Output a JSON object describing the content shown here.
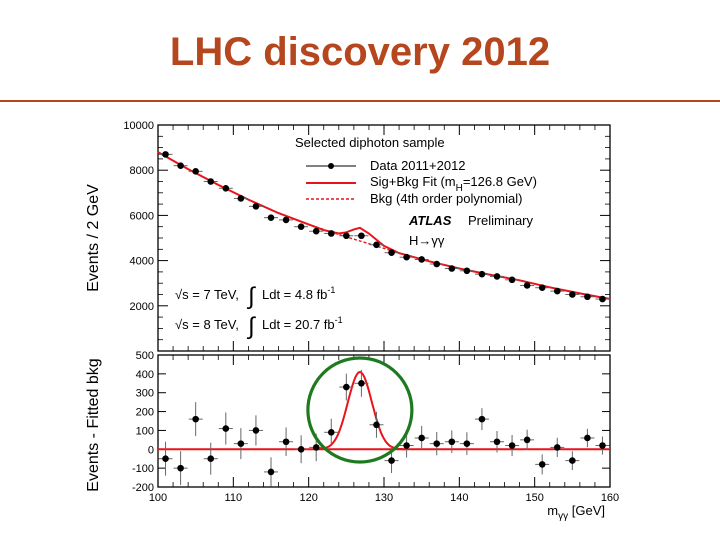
{
  "slide": {
    "title": "LHC discovery 2012",
    "title_color": "#b5461e",
    "rule_color": "#b5461e"
  },
  "chart_data": [
    {
      "type": "scatter",
      "panel": "top",
      "title": "Selected diphoton sample",
      "xlabel": "",
      "ylabel": "Events / 2 GeV",
      "xlim": [
        100,
        160
      ],
      "ylim": [
        0,
        10000
      ],
      "yticks": [
        2000,
        4000,
        6000,
        8000,
        10000
      ],
      "x": [
        101,
        103,
        105,
        107,
        109,
        111,
        113,
        115,
        117,
        119,
        121,
        123,
        125,
        127,
        129,
        131,
        133,
        135,
        137,
        139,
        141,
        143,
        145,
        147,
        149,
        151,
        153,
        155,
        157,
        159
      ],
      "values": [
        8700,
        8200,
        7950,
        7500,
        7200,
        6750,
        6400,
        5900,
        5800,
        5500,
        5300,
        5200,
        5100,
        5100,
        4700,
        4350,
        4150,
        4050,
        3850,
        3650,
        3550,
        3400,
        3300,
        3150,
        2900,
        2800,
        2650,
        2500,
        2400,
        2300
      ],
      "errors": [
        90,
        90,
        90,
        85,
        85,
        82,
        80,
        77,
        76,
        74,
        73,
        72,
        71,
        71,
        69,
        66,
        64,
        64,
        62,
        60,
        60,
        58,
        57,
        56,
        54,
        53,
        51,
        50,
        49,
        48
      ],
      "fit": {
        "name": "Sig+Bkg Fit (m_H=126.8 GeV)",
        "x": [
          100,
          104,
          108,
          112,
          116,
          120,
          122,
          124,
          125,
          126,
          126.8,
          128,
          130,
          132,
          136,
          140,
          144,
          148,
          152,
          156,
          160
        ],
        "values": [
          8800,
          8050,
          7350,
          6700,
          6100,
          5600,
          5350,
          5200,
          5250,
          5380,
          5450,
          5200,
          4650,
          4330,
          3970,
          3650,
          3380,
          3130,
          2820,
          2550,
          2300
        ]
      },
      "background": {
        "name": "Bkg (4th order polynomial)",
        "x": [
          100,
          104,
          108,
          112,
          116,
          120,
          124,
          128,
          132,
          136,
          140,
          144,
          148,
          152,
          156,
          160
        ],
        "values": [
          8800,
          8050,
          7350,
          6700,
          6100,
          5600,
          5150,
          4750,
          4330,
          3970,
          3650,
          3380,
          3130,
          2820,
          2550,
          2300
        ]
      },
      "legend": [
        {
          "label": "Data 2011+2012",
          "style": "points"
        },
        {
          "label": "Sig+Bkg Fit (m",
          "sub": "H",
          "tail": "=126.8 GeV)",
          "style": "solid"
        },
        {
          "label": "Bkg (4th order polynomial)",
          "style": "dashed"
        }
      ],
      "legend_position": "top-right",
      "annotations": {
        "experiment": "ATLAS",
        "status": "Preliminary",
        "channel": "H→γγ",
        "lumi_7_energy": "√s = 7 TeV,",
        "lumi_7_int": "Ldt = 4.8 fb",
        "lumi_8_energy": "√s = 8 TeV,",
        "lumi_8_int": "Ldt = 20.7 fb",
        "lumi_sup": "-1",
        "integral_sign": "∫"
      }
    },
    {
      "type": "scatter",
      "panel": "bottom",
      "xlabel": "mγγ [GeV]",
      "xlabel_main": "m",
      "xlabel_sub": "γγ",
      "xlabel_tail": " [GeV]",
      "ylabel": "Events - Fitted bkg",
      "xlim": [
        100,
        160
      ],
      "ylim": [
        -200,
        500
      ],
      "xticks": [
        100,
        110,
        120,
        130,
        140,
        150,
        160
      ],
      "yticks": [
        -200,
        -100,
        0,
        100,
        200,
        300,
        400,
        500
      ],
      "x": [
        101,
        103,
        105,
        107,
        109,
        111,
        113,
        115,
        117,
        119,
        121,
        123,
        125,
        127,
        129,
        131,
        133,
        135,
        137,
        139,
        141,
        143,
        145,
        147,
        149,
        151,
        153,
        155,
        157,
        159
      ],
      "values": [
        -50,
        -100,
        160,
        -50,
        110,
        30,
        100,
        -120,
        40,
        0,
        10,
        90,
        330,
        350,
        130,
        -60,
        20,
        60,
        30,
        40,
        30,
        160,
        40,
        20,
        50,
        -80,
        10,
        -60,
        60,
        20
      ],
      "errors": [
        90,
        90,
        90,
        85,
        85,
        82,
        80,
        77,
        76,
        74,
        73,
        72,
        71,
        71,
        69,
        66,
        64,
        64,
        62,
        60,
        60,
        58,
        57,
        56,
        54,
        53,
        51,
        50,
        49,
        48
      ],
      "signal_fit": {
        "mass": 126.8,
        "amplitude": 410,
        "sigma": 1.6
      },
      "highlight_circle": {
        "color": "#1e7a1e",
        "center_x": 126.8
      }
    }
  ],
  "colors": {
    "fit_line": "#e8141a",
    "points": "#000000",
    "frame": "#000000",
    "zero_line": "#e8141a"
  }
}
